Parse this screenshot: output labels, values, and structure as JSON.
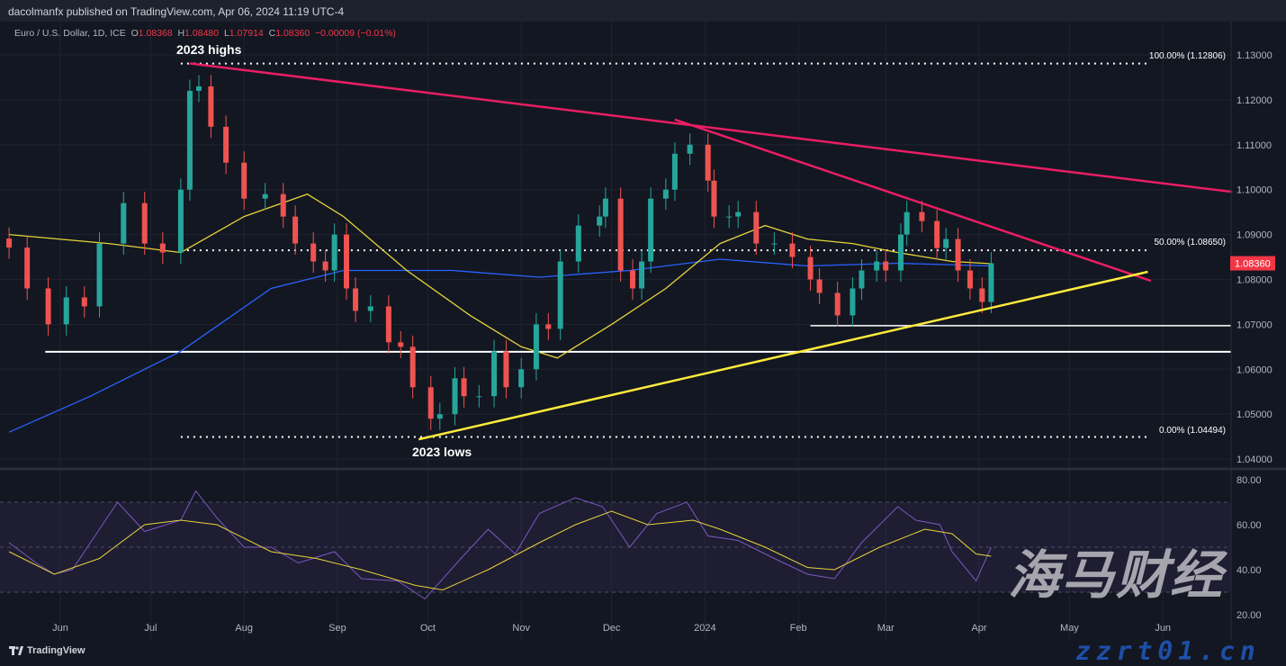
{
  "header": {
    "published": "dacolmanfx published on TradingView.com, Apr 06, 2024 11:19 UTC-4"
  },
  "legend": {
    "symbol": "Euro / U.S. Dollar, 1D, ICE",
    "o_label": "O",
    "o": "1.08368",
    "h_label": "H",
    "h": "1.08480",
    "l_label": "L",
    "l": "1.07914",
    "c_label": "C",
    "c": "1.08360",
    "change": "−0.00009 (−0.01%)"
  },
  "annotations": {
    "highs": "2023 highs",
    "lows": "2023 lows",
    "fib100": "100.00% (1.12806)",
    "fib50": "50.00% (1.08650)",
    "fib0": "0.00% (1.04494)"
  },
  "last_price": "1.08360",
  "brand": {
    "logo": "TradingView",
    "watermark_cn": "海马财经",
    "watermark_url": "zzrt01.cn"
  },
  "colors": {
    "background": "#131722",
    "bull": "#26a69a",
    "bear": "#ef5350",
    "sma_fast": "#e6d33a",
    "sma_slow": "#2962ff",
    "trendline_down": "#e91e63",
    "trendline_up": "#ffeb3b",
    "support": "#ffffff",
    "rsi": "#7e57c2",
    "rsi_ma": "#e6d33a",
    "last_price_badge": "#f23645"
  },
  "chart_data": [
    {
      "type": "candlestick",
      "title": "Euro / U.S. Dollar, 1D, ICE",
      "ylim": [
        1.035,
        1.133
      ],
      "y_ticks": [
        "1.13000",
        "1.12000",
        "1.11000",
        "1.10000",
        "1.09000",
        "1.08000",
        "1.07000",
        "1.06000",
        "1.05000",
        "1.04000"
      ],
      "x_ticks": [
        "Jun",
        "Jul",
        "Aug",
        "Sep",
        "Oct",
        "Nov",
        "Dec",
        "2024",
        "Feb",
        "Mar",
        "Apr",
        "May",
        "Jun"
      ],
      "x_tick_dates": [
        "2023-06-01",
        "2023-07-01",
        "2023-08-01",
        "2023-09-01",
        "2023-10-01",
        "2023-11-01",
        "2023-12-01",
        "2024-01-01",
        "2024-02-01",
        "2024-03-01",
        "2024-04-01",
        "2024-05-01",
        "2024-06-01"
      ],
      "closes": [
        [
          "2023-05-15",
          1.0871
        ],
        [
          "2023-05-21",
          1.078
        ],
        [
          "2023-05-28",
          1.07
        ],
        [
          "2023-06-03",
          1.076
        ],
        [
          "2023-06-09",
          1.074
        ],
        [
          "2023-06-14",
          1.088
        ],
        [
          "2023-06-22",
          1.097
        ],
        [
          "2023-06-29",
          1.088
        ],
        [
          "2023-07-05",
          1.086
        ],
        [
          "2023-07-11",
          1.1
        ],
        [
          "2023-07-14",
          1.122
        ],
        [
          "2023-07-17",
          1.123
        ],
        [
          "2023-07-21",
          1.114
        ],
        [
          "2023-07-26",
          1.106
        ],
        [
          "2023-08-01",
          1.098
        ],
        [
          "2023-08-08",
          1.099
        ],
        [
          "2023-08-14",
          1.094
        ],
        [
          "2023-08-18",
          1.088
        ],
        [
          "2023-08-24",
          1.084
        ],
        [
          "2023-08-28",
          1.082
        ],
        [
          "2023-08-31",
          1.09
        ],
        [
          "2023-09-04",
          1.078
        ],
        [
          "2023-09-07",
          1.073
        ],
        [
          "2023-09-12",
          1.074
        ],
        [
          "2023-09-18",
          1.066
        ],
        [
          "2023-09-22",
          1.065
        ],
        [
          "2023-09-26",
          1.056
        ],
        [
          "2023-10-02",
          1.049
        ],
        [
          "2023-10-05",
          1.05
        ],
        [
          "2023-10-10",
          1.058
        ],
        [
          "2023-10-13",
          1.054
        ],
        [
          "2023-10-18",
          1.054
        ],
        [
          "2023-10-23",
          1.064
        ],
        [
          "2023-10-27",
          1.056
        ],
        [
          "2023-11-01",
          1.06
        ],
        [
          "2023-11-06",
          1.07
        ],
        [
          "2023-11-10",
          1.069
        ],
        [
          "2023-11-14",
          1.084
        ],
        [
          "2023-11-20",
          1.092
        ],
        [
          "2023-11-27",
          1.094
        ],
        [
          "2023-11-29",
          1.098
        ],
        [
          "2023-12-04",
          1.082
        ],
        [
          "2023-12-08",
          1.078
        ],
        [
          "2023-12-11",
          1.084
        ],
        [
          "2023-12-14",
          1.098
        ],
        [
          "2023-12-19",
          1.1
        ],
        [
          "2023-12-22",
          1.108
        ],
        [
          "2023-12-27",
          1.11
        ],
        [
          "2024-01-02",
          1.102
        ],
        [
          "2024-01-04",
          1.094
        ],
        [
          "2024-01-09",
          1.094
        ],
        [
          "2024-01-12",
          1.095
        ],
        [
          "2024-01-18",
          1.088
        ],
        [
          "2024-01-24",
          1.088
        ],
        [
          "2024-01-30",
          1.085
        ],
        [
          "2024-02-05",
          1.08
        ],
        [
          "2024-02-08",
          1.077
        ],
        [
          "2024-02-14",
          1.072
        ],
        [
          "2024-02-19",
          1.078
        ],
        [
          "2024-02-22",
          1.082
        ],
        [
          "2024-02-27",
          1.084
        ],
        [
          "2024-03-01",
          1.082
        ],
        [
          "2024-03-06",
          1.09
        ],
        [
          "2024-03-08",
          1.095
        ],
        [
          "2024-03-13",
          1.093
        ],
        [
          "2024-03-18",
          1.087
        ],
        [
          "2024-03-21",
          1.089
        ],
        [
          "2024-03-25",
          1.082
        ],
        [
          "2024-03-29",
          1.078
        ],
        [
          "2024-04-02",
          1.075
        ],
        [
          "2024-04-05",
          1.0836
        ]
      ],
      "sma_fast": [
        [
          "2023-05-15",
          1.09
        ],
        [
          "2023-06-17",
          1.088
        ],
        [
          "2023-07-11",
          1.086
        ],
        [
          "2023-08-01",
          1.094
        ],
        [
          "2023-08-22",
          1.099
        ],
        [
          "2023-09-03",
          1.094
        ],
        [
          "2023-09-24",
          1.082
        ],
        [
          "2023-10-15",
          1.072
        ],
        [
          "2023-11-01",
          1.065
        ],
        [
          "2023-11-13",
          1.0625
        ],
        [
          "2023-12-01",
          1.07
        ],
        [
          "2023-12-19",
          1.078
        ],
        [
          "2024-01-06",
          1.088
        ],
        [
          "2024-01-21",
          1.092
        ],
        [
          "2024-02-04",
          1.089
        ],
        [
          "2024-02-19",
          1.088
        ],
        [
          "2024-03-05",
          1.086
        ],
        [
          "2024-03-23",
          1.084
        ],
        [
          "2024-04-05",
          1.0835
        ]
      ],
      "sma_slow": [
        [
          "2023-05-15",
          1.046
        ],
        [
          "2023-06-11",
          1.054
        ],
        [
          "2023-07-11",
          1.064
        ],
        [
          "2023-08-10",
          1.078
        ],
        [
          "2023-09-03",
          1.082
        ],
        [
          "2023-10-09",
          1.082
        ],
        [
          "2023-11-07",
          1.0805
        ],
        [
          "2023-12-07",
          1.082
        ],
        [
          "2024-01-06",
          1.0845
        ],
        [
          "2024-02-04",
          1.083
        ],
        [
          "2024-03-05",
          1.0836
        ],
        [
          "2024-04-05",
          1.083
        ]
      ],
      "levels": {
        "fib_100": 1.12806,
        "fib_50": 1.0865,
        "fib_0": 1.04494,
        "support_1": 1.0639,
        "support_2": 1.0697
      },
      "trendlines": [
        {
          "kind": "down",
          "from": [
            "2023-07-14",
            1.1281
          ],
          "to": [
            "2024-06-24",
            1.0995
          ]
        },
        {
          "kind": "down",
          "from": [
            "2023-12-22",
            1.1156
          ],
          "to": [
            "2024-05-28",
            1.0797
          ]
        },
        {
          "kind": "up",
          "from": [
            "2023-09-28",
            1.0444
          ],
          "to": [
            "2024-05-27",
            1.0817
          ]
        }
      ],
      "support_starts": {
        "support_1": "2023-05-27",
        "support_2": "2024-02-05"
      },
      "fib_start": "2023-07-11"
    },
    {
      "type": "line",
      "ylim": [
        15,
        85
      ],
      "y_ticks": [
        "80.00",
        "60.00",
        "40.00",
        "20.00"
      ],
      "band": [
        30,
        70
      ],
      "midline": 50,
      "rsi": [
        [
          "2023-05-15",
          52
        ],
        [
          "2023-05-24",
          43
        ],
        [
          "2023-05-30",
          38
        ],
        [
          "2023-06-05",
          40
        ],
        [
          "2023-06-14",
          58
        ],
        [
          "2023-06-20",
          70
        ],
        [
          "2023-06-29",
          57
        ],
        [
          "2023-07-11",
          62
        ],
        [
          "2023-07-16",
          75
        ],
        [
          "2023-07-23",
          63
        ],
        [
          "2023-08-01",
          50
        ],
        [
          "2023-08-10",
          50
        ],
        [
          "2023-08-19",
          43
        ],
        [
          "2023-08-31",
          48
        ],
        [
          "2023-09-09",
          36
        ],
        [
          "2023-09-21",
          35
        ],
        [
          "2023-09-30",
          27
        ],
        [
          "2023-10-06",
          36
        ],
        [
          "2023-10-12",
          45
        ],
        [
          "2023-10-21",
          58
        ],
        [
          "2023-10-30",
          47
        ],
        [
          "2023-11-07",
          65
        ],
        [
          "2023-11-19",
          72
        ],
        [
          "2023-11-28",
          68
        ],
        [
          "2023-12-07",
          50
        ],
        [
          "2023-12-16",
          65
        ],
        [
          "2023-12-26",
          70
        ],
        [
          "2024-01-02",
          55
        ],
        [
          "2024-01-12",
          53
        ],
        [
          "2024-01-24",
          45
        ],
        [
          "2024-02-04",
          38
        ],
        [
          "2024-02-13",
          36
        ],
        [
          "2024-02-22",
          52
        ],
        [
          "2024-03-05",
          68
        ],
        [
          "2024-03-11",
          62
        ],
        [
          "2024-03-19",
          60
        ],
        [
          "2024-03-23",
          48
        ],
        [
          "2024-03-31",
          35
        ],
        [
          "2024-04-05",
          50
        ]
      ],
      "rsi_ma": [
        [
          "2023-05-15",
          48
        ],
        [
          "2023-05-30",
          38
        ],
        [
          "2023-06-14",
          45
        ],
        [
          "2023-06-29",
          60
        ],
        [
          "2023-07-11",
          62
        ],
        [
          "2023-07-23",
          60
        ],
        [
          "2023-08-10",
          48
        ],
        [
          "2023-08-25",
          45
        ],
        [
          "2023-09-09",
          40
        ],
        [
          "2023-09-27",
          33
        ],
        [
          "2023-10-06",
          31
        ],
        [
          "2023-10-21",
          40
        ],
        [
          "2023-11-07",
          52
        ],
        [
          "2023-11-19",
          60
        ],
        [
          "2023-12-01",
          66
        ],
        [
          "2023-12-13",
          60
        ],
        [
          "2023-12-28",
          62
        ],
        [
          "2024-01-06",
          58
        ],
        [
          "2024-01-21",
          50
        ],
        [
          "2024-02-04",
          41
        ],
        [
          "2024-02-13",
          40
        ],
        [
          "2024-02-28",
          50
        ],
        [
          "2024-03-14",
          58
        ],
        [
          "2024-03-23",
          56
        ],
        [
          "2024-03-31",
          47
        ],
        [
          "2024-04-05",
          46
        ]
      ]
    }
  ]
}
